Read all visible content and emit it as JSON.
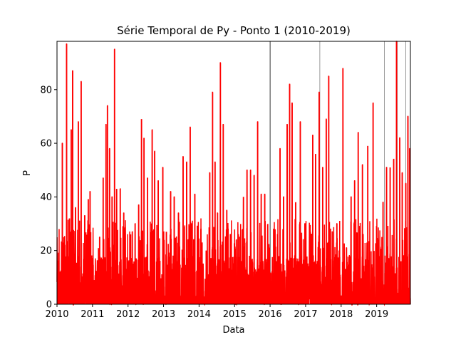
{
  "chart_data": {
    "type": "line",
    "title": "Série Temporal de Py - Ponto 1 (2010-2019)",
    "xlabel": "Data",
    "ylabel": "P",
    "xlim": [
      2010.0,
      2019.95
    ],
    "ylim": [
      0,
      98
    ],
    "x_ticks": [
      2010,
      2011,
      2012,
      2013,
      2014,
      2015,
      2016,
      2017,
      2018,
      2019
    ],
    "x_tick_labels": [
      "2010",
      "2011",
      "2012",
      "2013",
      "2014",
      "2015",
      "2016",
      "2017",
      "2018",
      "2019"
    ],
    "y_ticks": [
      0,
      20,
      40,
      60,
      80
    ],
    "y_tick_labels": [
      "0",
      "20",
      "40",
      "60",
      "80"
    ],
    "series": [
      {
        "name": "Py",
        "color": "#ff0000",
        "peaks": [
          {
            "x": 2010.08,
            "y": 12
          },
          {
            "x": 2010.15,
            "y": 60
          },
          {
            "x": 2010.22,
            "y": 22
          },
          {
            "x": 2010.27,
            "y": 97
          },
          {
            "x": 2010.35,
            "y": 32
          },
          {
            "x": 2010.4,
            "y": 65
          },
          {
            "x": 2010.44,
            "y": 87
          },
          {
            "x": 2010.52,
            "y": 36
          },
          {
            "x": 2010.6,
            "y": 68
          },
          {
            "x": 2010.68,
            "y": 83
          },
          {
            "x": 2010.78,
            "y": 33
          },
          {
            "x": 2010.88,
            "y": 39
          },
          {
            "x": 2010.93,
            "y": 42
          },
          {
            "x": 2011.05,
            "y": 9
          },
          {
            "x": 2011.15,
            "y": 13
          },
          {
            "x": 2011.2,
            "y": 25
          },
          {
            "x": 2011.3,
            "y": 47
          },
          {
            "x": 2011.38,
            "y": 67
          },
          {
            "x": 2011.42,
            "y": 74
          },
          {
            "x": 2011.48,
            "y": 58
          },
          {
            "x": 2011.55,
            "y": 40
          },
          {
            "x": 2011.62,
            "y": 95
          },
          {
            "x": 2011.68,
            "y": 43
          },
          {
            "x": 2011.78,
            "y": 43
          },
          {
            "x": 2011.88,
            "y": 34
          },
          {
            "x": 2011.95,
            "y": 13
          },
          {
            "x": 2012.12,
            "y": 27
          },
          {
            "x": 2012.2,
            "y": 30
          },
          {
            "x": 2012.3,
            "y": 37
          },
          {
            "x": 2012.38,
            "y": 69
          },
          {
            "x": 2012.45,
            "y": 62
          },
          {
            "x": 2012.55,
            "y": 47
          },
          {
            "x": 2012.68,
            "y": 65
          },
          {
            "x": 2012.75,
            "y": 57
          },
          {
            "x": 2012.85,
            "y": 46
          },
          {
            "x": 2012.98,
            "y": 51
          },
          {
            "x": 2013.08,
            "y": 27
          },
          {
            "x": 2013.2,
            "y": 42
          },
          {
            "x": 2013.3,
            "y": 40
          },
          {
            "x": 2013.42,
            "y": 34
          },
          {
            "x": 2013.55,
            "y": 55
          },
          {
            "x": 2013.65,
            "y": 53
          },
          {
            "x": 2013.75,
            "y": 66
          },
          {
            "x": 2013.88,
            "y": 41
          },
          {
            "x": 2014.05,
            "y": 28
          },
          {
            "x": 2014.2,
            "y": 20
          },
          {
            "x": 2014.3,
            "y": 49
          },
          {
            "x": 2014.38,
            "y": 79
          },
          {
            "x": 2014.45,
            "y": 53
          },
          {
            "x": 2014.52,
            "y": 34
          },
          {
            "x": 2014.6,
            "y": 90
          },
          {
            "x": 2014.68,
            "y": 67
          },
          {
            "x": 2014.78,
            "y": 35
          },
          {
            "x": 2014.88,
            "y": 26
          },
          {
            "x": 2015.05,
            "y": 24
          },
          {
            "x": 2015.15,
            "y": 25
          },
          {
            "x": 2015.25,
            "y": 40
          },
          {
            "x": 2015.35,
            "y": 50
          },
          {
            "x": 2015.45,
            "y": 50
          },
          {
            "x": 2015.55,
            "y": 48
          },
          {
            "x": 2015.65,
            "y": 68
          },
          {
            "x": 2015.75,
            "y": 41
          },
          {
            "x": 2015.85,
            "y": 41
          },
          {
            "x": 2015.95,
            "y": 12
          },
          {
            "x": 2016.1,
            "y": 28
          },
          {
            "x": 2016.28,
            "y": 58
          },
          {
            "x": 2016.38,
            "y": 40
          },
          {
            "x": 2016.48,
            "y": 67
          },
          {
            "x": 2016.55,
            "y": 82
          },
          {
            "x": 2016.62,
            "y": 75
          },
          {
            "x": 2016.72,
            "y": 38
          },
          {
            "x": 2016.85,
            "y": 68
          },
          {
            "x": 2016.98,
            "y": 30
          },
          {
            "x": 2017.08,
            "y": 14
          },
          {
            "x": 2017.2,
            "y": 63
          },
          {
            "x": 2017.28,
            "y": 56
          },
          {
            "x": 2017.38,
            "y": 79
          },
          {
            "x": 2017.48,
            "y": 51
          },
          {
            "x": 2017.58,
            "y": 69
          },
          {
            "x": 2017.65,
            "y": 85
          },
          {
            "x": 2017.75,
            "y": 27
          },
          {
            "x": 2017.88,
            "y": 30
          },
          {
            "x": 2018.05,
            "y": 88
          },
          {
            "x": 2018.15,
            "y": 21
          },
          {
            "x": 2018.28,
            "y": 40
          },
          {
            "x": 2018.38,
            "y": 46
          },
          {
            "x": 2018.48,
            "y": 64
          },
          {
            "x": 2018.6,
            "y": 52
          },
          {
            "x": 2018.75,
            "y": 59
          },
          {
            "x": 2018.9,
            "y": 75
          },
          {
            "x": 2019.05,
            "y": 24
          },
          {
            "x": 2019.18,
            "y": 38
          },
          {
            "x": 2019.28,
            "y": 51
          },
          {
            "x": 2019.38,
            "y": 51
          },
          {
            "x": 2019.48,
            "y": 54
          },
          {
            "x": 2019.56,
            "y": 98
          },
          {
            "x": 2019.65,
            "y": 62
          },
          {
            "x": 2019.72,
            "y": 49
          },
          {
            "x": 2019.82,
            "y": 45
          },
          {
            "x": 2019.88,
            "y": 70
          },
          {
            "x": 2019.93,
            "y": 58
          }
        ]
      }
    ],
    "reference_lines": [
      {
        "x": 2016.0,
        "color": "#000000"
      },
      {
        "x": 2017.4,
        "color": "#808080"
      },
      {
        "x": 2019.22,
        "color": "#808080"
      },
      {
        "x": 2019.58,
        "color": "#808080"
      },
      {
        "x": 2019.82,
        "color": "#808080"
      }
    ]
  }
}
